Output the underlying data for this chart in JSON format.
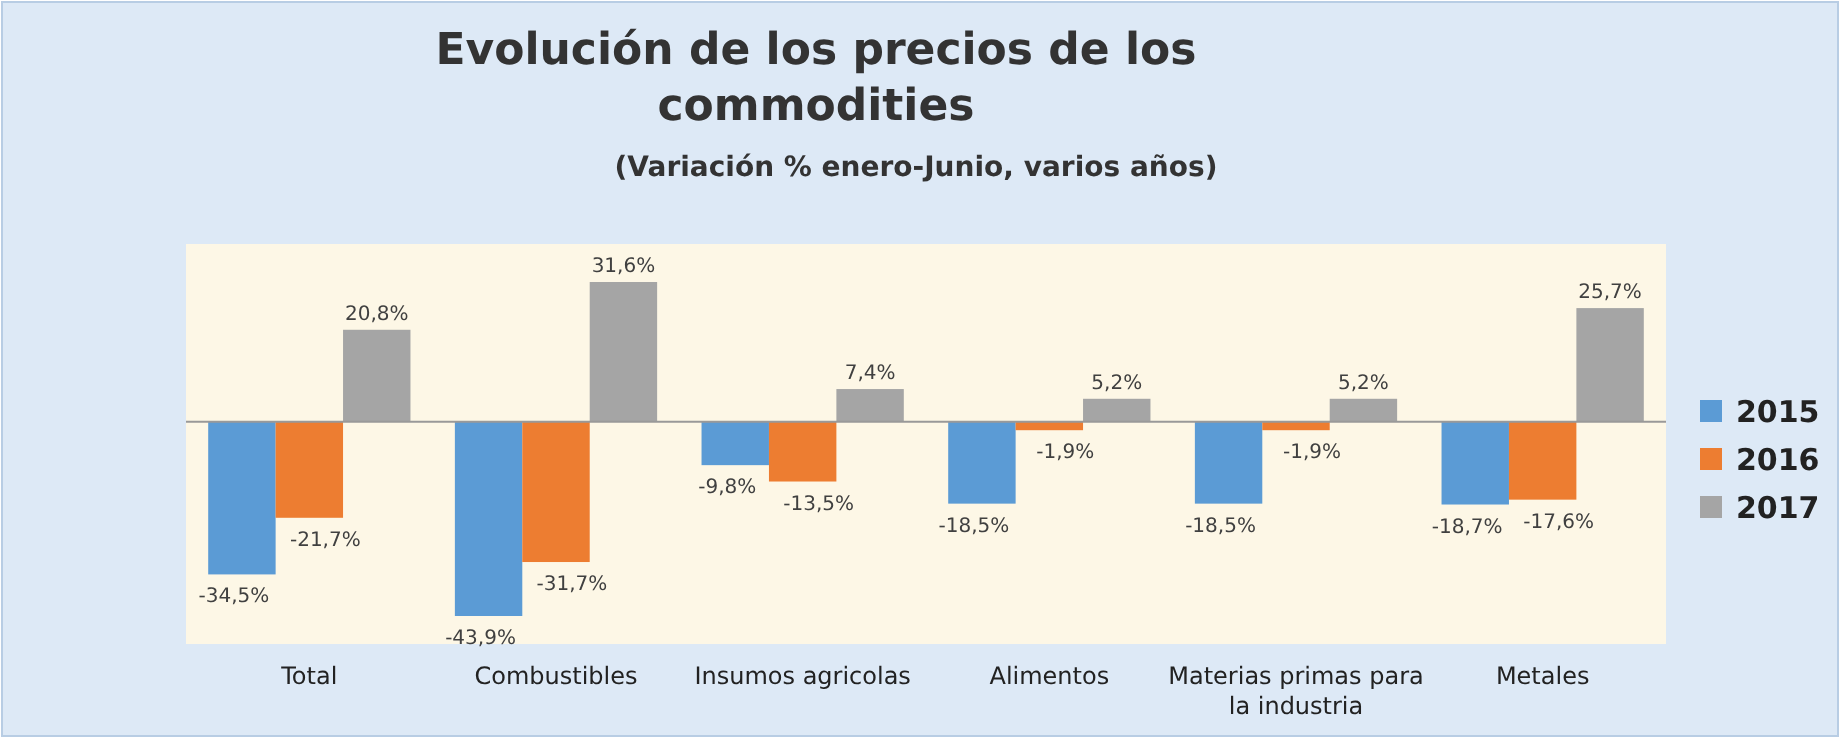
{
  "chart_data": {
    "type": "bar",
    "title": "Evolución de los precios de los commodities",
    "subtitle": "(Variación % enero-Junio, varios años)",
    "categories": [
      "Total",
      "Combustibles",
      "Insumos agricolas",
      "Alimentos",
      "Materias primas para la industria",
      "Metales"
    ],
    "series": [
      {
        "name": "2015",
        "color": "#5b9bd5",
        "values": [
          -34.5,
          -43.9,
          -9.8,
          -18.5,
          -18.5,
          -18.7
        ],
        "value_labels": [
          "-34,5%",
          "-43,9%",
          "-9,8%",
          "-18,5%",
          "-18,5%",
          "-18,7%"
        ]
      },
      {
        "name": "2016",
        "color": "#ed7d31",
        "values": [
          -21.7,
          -31.7,
          -13.5,
          -1.9,
          -1.9,
          -17.6
        ],
        "value_labels": [
          "-21,7%",
          "-31,7%",
          "-13,5%",
          "-1,9%",
          "-1,9%",
          "-17,6%"
        ]
      },
      {
        "name": "2017",
        "color": "#a5a5a5",
        "values": [
          20.8,
          31.6,
          7.4,
          5.2,
          5.2,
          25.7
        ],
        "value_labels": [
          "20,8%",
          "31,6%",
          "7,4%",
          "5,2%",
          "5,2%",
          "25,7%"
        ]
      }
    ],
    "legend": "right"
  }
}
